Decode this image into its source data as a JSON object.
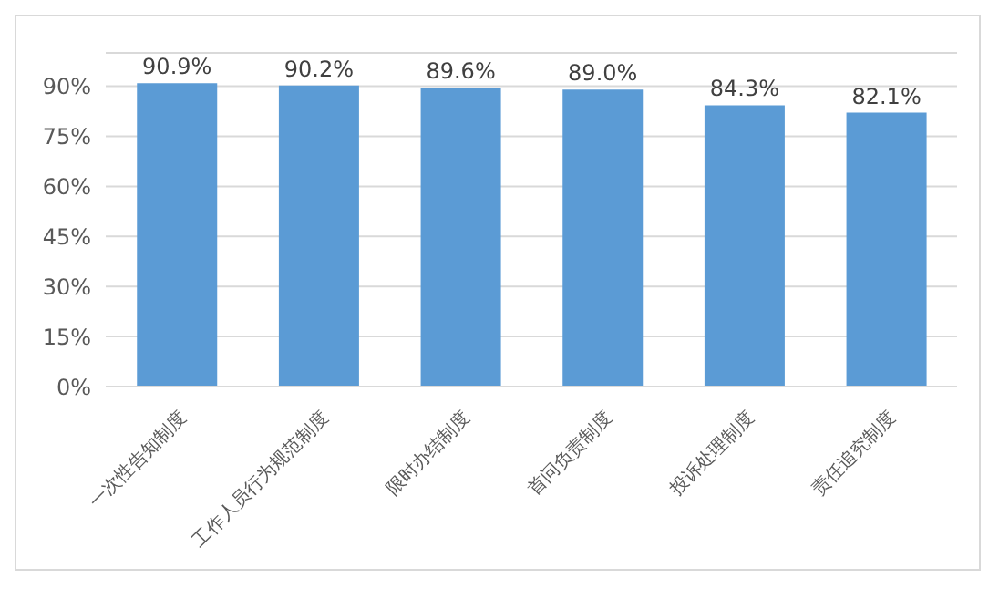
{
  "chart_data": {
    "type": "bar",
    "categories": [
      "一次性告知制度",
      "工作人员行为规范制度",
      "限时办结制度",
      "首问负责制度",
      "投诉处理制度",
      "责任追究制度"
    ],
    "values": [
      90.9,
      90.2,
      89.6,
      89.0,
      84.3,
      82.1
    ],
    "value_labels": [
      "90.9%",
      "90.2%",
      "89.6%",
      "89.0%",
      "84.3%",
      "82.1%"
    ],
    "color": "#5b9bd5",
    "ylim": [
      0,
      100
    ],
    "yticks": [
      {
        "value": 0,
        "label": "0%"
      },
      {
        "value": 15,
        "label": "15%"
      },
      {
        "value": 30,
        "label": "30%"
      },
      {
        "value": 45,
        "label": "45%"
      },
      {
        "value": 60,
        "label": "60%"
      },
      {
        "value": 75,
        "label": "75%"
      },
      {
        "value": 90,
        "label": "90%"
      }
    ],
    "grid": "y"
  }
}
